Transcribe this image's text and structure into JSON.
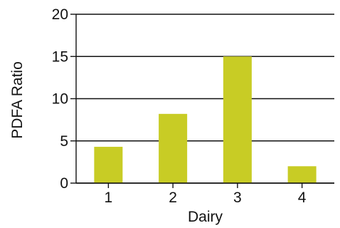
{
  "chart_data": {
    "type": "bar",
    "categories": [
      "1",
      "2",
      "3",
      "4"
    ],
    "values": [
      4.3,
      8.2,
      15.0,
      2.0
    ],
    "title": "",
    "xlabel": "Dairy",
    "ylabel": "PDFA Ratio",
    "ylim": [
      0,
      20
    ],
    "yticks": [
      0,
      5,
      10,
      15,
      20
    ],
    "grid": "horizontal",
    "colors": {
      "bar": "#C8CC25",
      "axis": "#111111",
      "grid": "#111111",
      "text": "#111111"
    }
  }
}
